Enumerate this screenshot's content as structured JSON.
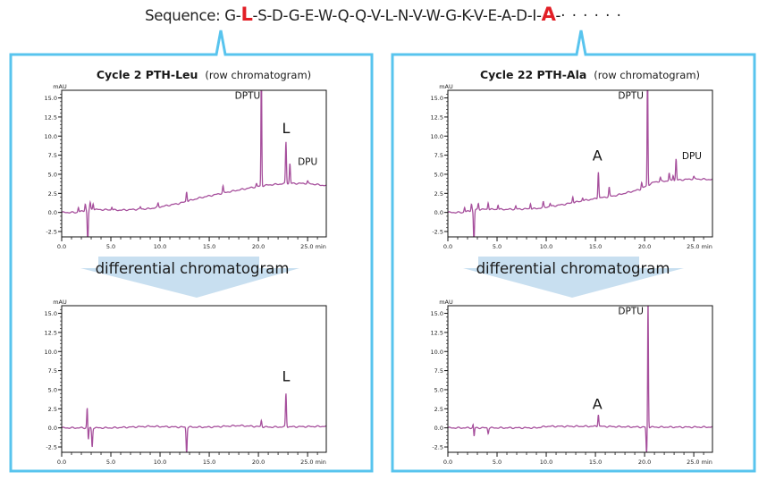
{
  "sequence": {
    "label": "Sequence:",
    "residues": [
      "G",
      "L",
      "S",
      "D",
      "G",
      "E",
      "W",
      "Q",
      "Q",
      "V",
      "L",
      "N",
      "V",
      "W",
      "G",
      "K",
      "V",
      "E",
      "A",
      "D",
      "I",
      "A"
    ],
    "highlighted_indices": [
      1,
      21
    ],
    "trailing": "· · · · · ·",
    "highlight_color": "#e21f26"
  },
  "colors": {
    "frame": "#58c4ee",
    "trace": "#a64f9c",
    "arrow": "#c8dff0",
    "axis": "#111111"
  },
  "arrows": [
    {
      "label": "differential chromatogram"
    },
    {
      "label": "differential chromatogram"
    }
  ],
  "chart_data": [
    {
      "type": "line",
      "panel": "left",
      "title_bold": "Cycle 2 PTH-Leu",
      "title_normal": "(row chromatogram)",
      "xlabel": "min",
      "ylabel": "mAU",
      "xlim": [
        0,
        26.9
      ],
      "ylim": [
        -3.2,
        16.0
      ],
      "xticks": [
        0.0,
        5.0,
        10.0,
        15.0,
        20.0,
        25.0
      ],
      "xtick_labels": [
        "0.0",
        "5.0",
        "10.0",
        "15.0",
        "20.0",
        "25.0 min"
      ],
      "yticks": [
        -2.5,
        0.0,
        2.5,
        5.0,
        7.5,
        10.0,
        12.5,
        15.0
      ],
      "ytick_labels": [
        "-2.5",
        "0.0",
        "2.5",
        "5.0",
        "7.5",
        "10.0",
        "12.5",
        "15.0"
      ],
      "baseline": [
        [
          0,
          0
        ],
        [
          1.5,
          0
        ],
        [
          3,
          0.4
        ],
        [
          6,
          0.3
        ],
        [
          9,
          0.5
        ],
        [
          12,
          1.2
        ],
        [
          14,
          1.9
        ],
        [
          17,
          2.7
        ],
        [
          19.5,
          3.3
        ],
        [
          21,
          3.6
        ],
        [
          23,
          3.8
        ],
        [
          25,
          3.8
        ],
        [
          26.9,
          3.5
        ]
      ],
      "peaks": [
        {
          "t": 1.7,
          "h": 0.6
        },
        {
          "t": 2.4,
          "h": 0.9
        },
        {
          "t": 2.65,
          "h": -4.5
        },
        {
          "t": 2.9,
          "h": 0.9
        },
        {
          "t": 3.2,
          "h": 0.8
        },
        {
          "t": 5.1,
          "h": 0.4
        },
        {
          "t": 8.0,
          "h": 0.3
        },
        {
          "t": 9.8,
          "h": 0.5
        },
        {
          "t": 12.7,
          "h": 1.3
        },
        {
          "t": 16.4,
          "h": 0.9
        },
        {
          "t": 19.8,
          "h": 0.4
        },
        {
          "t": 20.3,
          "h": 17.0
        },
        {
          "t": 22.8,
          "h": 5.5
        },
        {
          "t": 23.2,
          "h": 2.6
        },
        {
          "t": 25.0,
          "h": 0.3
        }
      ],
      "annotations": [
        {
          "text": "DPTU",
          "x": 17.6,
          "y": 14.9,
          "size": "small"
        },
        {
          "text": "L",
          "x": 22.4,
          "y": 10.4,
          "size": "large"
        },
        {
          "text": "DPU",
          "x": 24.0,
          "y": 6.2,
          "size": "small"
        }
      ]
    },
    {
      "type": "line",
      "panel": "left",
      "title_bold": "",
      "title_normal": "",
      "xlabel": "min",
      "ylabel": "mAU",
      "xlim": [
        0,
        26.9
      ],
      "ylim": [
        -3.2,
        16.0
      ],
      "xticks": [
        0.0,
        5.0,
        10.0,
        15.0,
        20.0,
        25.0
      ],
      "xtick_labels": [
        "0.0",
        "5.0",
        "10.0",
        "15.0",
        "20.0",
        "25.0 min"
      ],
      "yticks": [
        -2.5,
        0.0,
        2.5,
        5.0,
        7.5,
        10.0,
        12.5,
        15.0
      ],
      "ytick_labels": [
        "-2.5",
        "0.0",
        "2.5",
        "5.0",
        "7.5",
        "10.0",
        "12.5",
        "15.0"
      ],
      "baseline": [
        [
          0,
          0
        ],
        [
          5,
          0
        ],
        [
          9,
          0.2
        ],
        [
          12,
          0.1
        ],
        [
          15,
          0.1
        ],
        [
          18,
          0.3
        ],
        [
          21,
          0.1
        ],
        [
          26.9,
          0.2
        ]
      ],
      "peaks": [
        {
          "t": 2.6,
          "h": 2.8
        },
        {
          "t": 2.7,
          "h": -1.8
        },
        {
          "t": 3.1,
          "h": -2.5
        },
        {
          "t": 12.7,
          "h": -3.5
        },
        {
          "t": 20.3,
          "h": 0.8
        },
        {
          "t": 22.8,
          "h": 4.4
        }
      ],
      "annotations": [
        {
          "text": "L",
          "x": 22.4,
          "y": 6.1,
          "size": "large"
        }
      ]
    },
    {
      "type": "line",
      "panel": "right",
      "title_bold": "Cycle 22 PTH-Ala",
      "title_normal": "(row chromatogram)",
      "xlabel": "min",
      "ylabel": "mAU",
      "xlim": [
        0,
        26.9
      ],
      "ylim": [
        -3.2,
        16.0
      ],
      "xticks": [
        0.0,
        5.0,
        10.0,
        15.0,
        20.0,
        25.0
      ],
      "xtick_labels": [
        "0.0",
        "5.0",
        "10.0",
        "15.0",
        "20.0",
        "25.0 min"
      ],
      "yticks": [
        -2.5,
        0.0,
        2.5,
        5.0,
        7.5,
        10.0,
        12.5,
        15.0
      ],
      "ytick_labels": [
        "-2.5",
        "0.0",
        "2.5",
        "5.0",
        "7.5",
        "10.0",
        "12.5",
        "15.0"
      ],
      "baseline": [
        [
          0,
          0
        ],
        [
          1.5,
          0
        ],
        [
          3,
          0.4
        ],
        [
          6,
          0.4
        ],
        [
          9,
          0.5
        ],
        [
          12,
          1.1
        ],
        [
          14,
          1.6
        ],
        [
          17,
          2.2
        ],
        [
          19.5,
          3.0
        ],
        [
          21,
          4.0
        ],
        [
          23,
          4.2
        ],
        [
          25,
          4.4
        ],
        [
          26.9,
          4.3
        ]
      ],
      "peaks": [
        {
          "t": 1.7,
          "h": 0.6
        },
        {
          "t": 2.4,
          "h": 0.9
        },
        {
          "t": 2.65,
          "h": -4.5
        },
        {
          "t": 3.1,
          "h": 0.8
        },
        {
          "t": 4.1,
          "h": 0.9
        },
        {
          "t": 5.1,
          "h": 0.6
        },
        {
          "t": 6.9,
          "h": 0.4
        },
        {
          "t": 8.4,
          "h": 0.7
        },
        {
          "t": 9.7,
          "h": 0.7
        },
        {
          "t": 10.4,
          "h": 0.4
        },
        {
          "t": 12.7,
          "h": 0.8
        },
        {
          "t": 13.7,
          "h": 0.4
        },
        {
          "t": 15.3,
          "h": 3.5
        },
        {
          "t": 16.4,
          "h": 1.2
        },
        {
          "t": 19.7,
          "h": 0.8
        },
        {
          "t": 20.3,
          "h": 17.0
        },
        {
          "t": 21.6,
          "h": 0.5
        },
        {
          "t": 22.5,
          "h": 1.0
        },
        {
          "t": 22.9,
          "h": 0.7
        },
        {
          "t": 23.2,
          "h": 2.8
        },
        {
          "t": 25.0,
          "h": 0.3
        }
      ],
      "annotations": [
        {
          "text": "DPTU",
          "x": 17.3,
          "y": 14.9,
          "size": "small"
        },
        {
          "text": "A",
          "x": 14.7,
          "y": 6.8,
          "size": "large"
        },
        {
          "text": "DPU",
          "x": 23.8,
          "y": 7.0,
          "size": "small"
        }
      ]
    },
    {
      "type": "line",
      "panel": "right",
      "title_bold": "",
      "title_normal": "",
      "xlabel": "min",
      "ylabel": "mAU",
      "xlim": [
        0,
        26.9
      ],
      "ylim": [
        -3.2,
        16.0
      ],
      "xticks": [
        0.0,
        5.0,
        10.0,
        15.0,
        20.0,
        25.0
      ],
      "xtick_labels": [
        "0.0",
        "5.0",
        "10.0",
        "15.0",
        "20.0",
        "25.0 min"
      ],
      "yticks": [
        -2.5,
        0.0,
        2.5,
        5.0,
        7.5,
        10.0,
        12.5,
        15.0
      ],
      "ytick_labels": [
        "-2.5",
        "0.0",
        "2.5",
        "5.0",
        "7.5",
        "10.0",
        "12.5",
        "15.0"
      ],
      "baseline": [
        [
          0,
          0
        ],
        [
          5,
          0
        ],
        [
          9,
          0.0
        ],
        [
          10,
          0.2
        ],
        [
          15,
          0.2
        ],
        [
          20,
          0.1
        ],
        [
          26.9,
          0.1
        ]
      ],
      "peaks": [
        {
          "t": 2.6,
          "h": 1.0
        },
        {
          "t": 2.65,
          "h": -1.6
        },
        {
          "t": 4.1,
          "h": -0.7
        },
        {
          "t": 15.3,
          "h": 1.6
        },
        {
          "t": 20.2,
          "h": -3.5
        },
        {
          "t": 20.35,
          "h": 17.0
        }
      ],
      "annotations": [
        {
          "text": "DPTU",
          "x": 17.3,
          "y": 14.9,
          "size": "small"
        },
        {
          "text": "A",
          "x": 14.7,
          "y": 2.5,
          "size": "large"
        }
      ]
    }
  ]
}
